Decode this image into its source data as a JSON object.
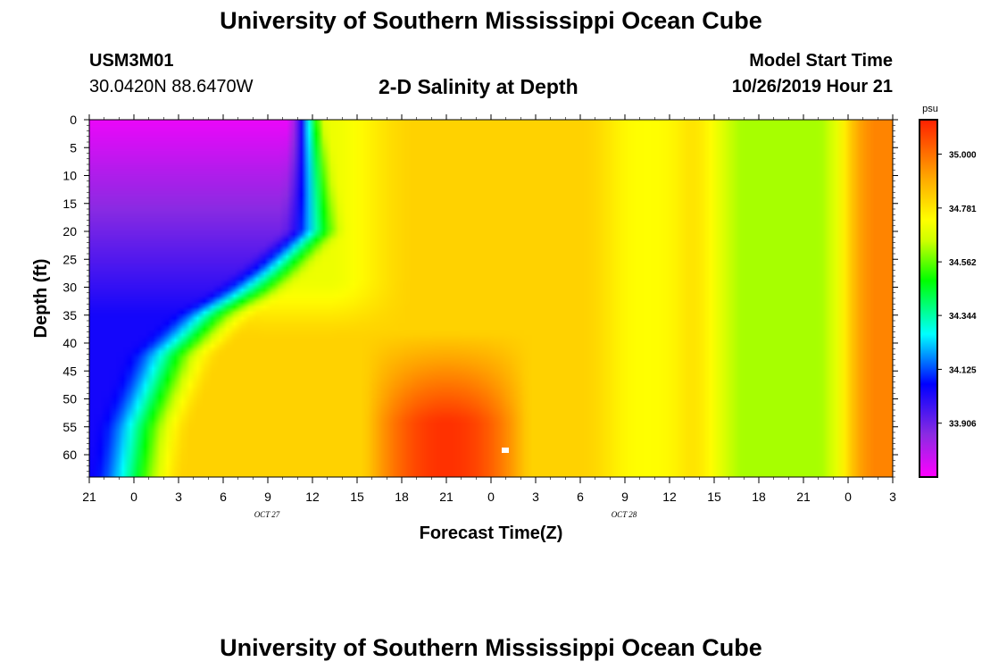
{
  "header": {
    "title": "University of Southern Mississippi Ocean Cube",
    "station_id": "USM3M01",
    "location": "30.0420N 88.6470W",
    "chart_title": "2-D Salinity at Depth",
    "model_start_label": "Model Start Time",
    "model_start_value": "10/26/2019 Hour 21"
  },
  "footer": {
    "title": "University of Southern Mississippi Ocean Cube"
  },
  "chart_data": {
    "type": "heatmap",
    "title": "2-D Salinity at Depth",
    "xlabel": "Forecast Time(Z)",
    "ylabel": "Depth (ft)",
    "x_tick_labels": [
      "21",
      "0",
      "3",
      "6",
      "9",
      "12",
      "15",
      "18",
      "21",
      "0",
      "3",
      "6",
      "9",
      "12",
      "15",
      "18",
      "21",
      "0",
      "3"
    ],
    "x_range_hours": [
      0,
      54
    ],
    "date_labels": [
      {
        "text": "OCT 27",
        "hour": 15
      },
      {
        "text": "OCT 28",
        "hour": 39
      }
    ],
    "y_tick_labels": [
      "0",
      "5",
      "10",
      "15",
      "20",
      "25",
      "30",
      "35",
      "40",
      "45",
      "50",
      "55",
      "60"
    ],
    "y_range_ft": [
      0,
      64
    ],
    "colorbar": {
      "unit": "psu",
      "min": 33.687,
      "max": 35.14,
      "tick_values": [
        35.0,
        34.781,
        34.562,
        34.344,
        34.125,
        33.906
      ],
      "tick_labels": [
        "35.000",
        "34.781",
        "34.562",
        "34.344",
        "34.125",
        "33.906"
      ],
      "colors": [
        "#ff00ff",
        "#8a2be2",
        "#0000ff",
        "#00ffff",
        "#00ff00",
        "#ccff00",
        "#ffff00",
        "#ffa500",
        "#ff0000"
      ]
    }
  }
}
